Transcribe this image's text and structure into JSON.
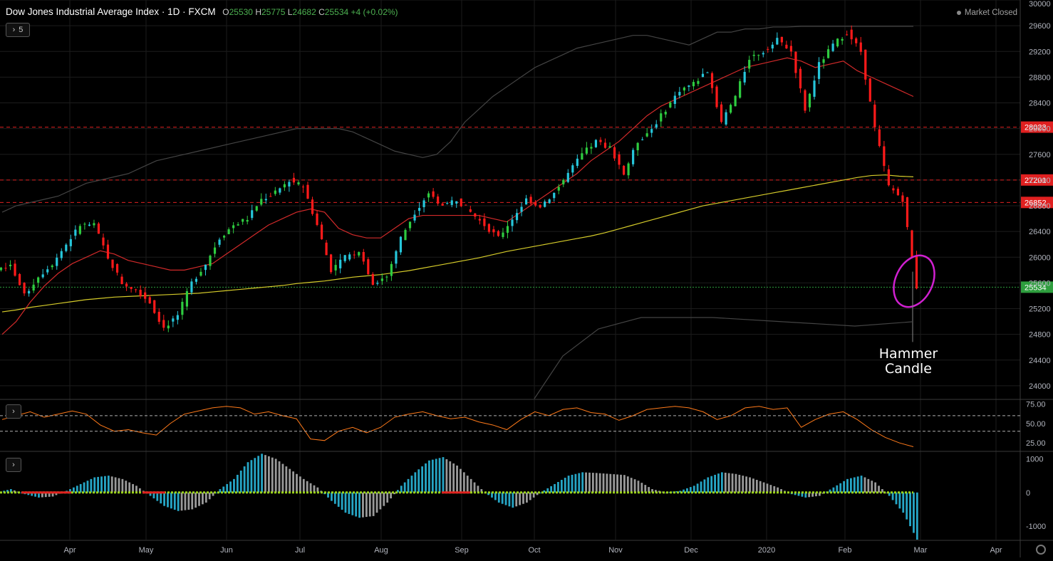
{
  "header": {
    "title": "Dow Jones Industrial Average Index · 1D · FXCM",
    "open_label": "O",
    "open": "25530",
    "high_label": "H",
    "high": "25775",
    "low_label": "L",
    "low": "24682",
    "close_label": "C",
    "close": "25534",
    "change": "+4 (+0.02%)"
  },
  "indicator_toggle": {
    "count": "5"
  },
  "market_status": "Market Closed",
  "annotation": {
    "line1": "Hammer",
    "line2": "Candle"
  },
  "price_axis_labels": [
    "30000",
    "29600",
    "29200",
    "28800",
    "28400",
    "28000",
    "27600",
    "27200",
    "26800",
    "26400",
    "26000",
    "25600",
    "25200",
    "24800",
    "24400",
    "24000"
  ],
  "rsi_axis_labels": [
    "75.00",
    "50.00",
    "25.00"
  ],
  "macd_axis_labels": [
    "1000",
    "0",
    "-1000"
  ],
  "time_axis_labels": [
    "Apr",
    "May",
    "Jun",
    "Jul",
    "Aug",
    "Sep",
    "Oct",
    "Nov",
    "Dec",
    "2020",
    "Feb",
    "Mar",
    "Apr"
  ],
  "chart_data": [
    {
      "type": "line",
      "title": "Dow Jones Industrial Average Index · 1D · FXCM",
      "ylim": [
        23800,
        30000
      ],
      "series": [
        {
          "values": [
            25900,
            25400,
            25700,
            25900,
            26200,
            26500,
            26500,
            26000,
            25600,
            25500,
            25300,
            24900,
            25100,
            25600,
            25900,
            26300,
            26500,
            26600,
            26900,
            27000,
            27200,
            27100,
            26500,
            25800,
            26000,
            26100,
            25600,
            25700,
            26300,
            26700,
            27000,
            26800,
            26900,
            26700,
            26500,
            26300,
            26600,
            26900,
            26800,
            27000,
            27300,
            27600,
            27800,
            27700,
            27300,
            27800,
            28000,
            28300,
            28600,
            28700,
            28900,
            28100,
            28500,
            29100,
            29200,
            29400,
            29200,
            28300,
            29000,
            29300,
            29500,
            29200,
            28000,
            27100,
            26900,
            25534
          ]
        },
        {
          "values": [
            25150,
            25180,
            25220,
            25250,
            25280,
            25310,
            25340,
            25360,
            25380,
            25390,
            25400,
            25410,
            25420,
            25430,
            25440,
            25460,
            25480,
            25500,
            25520,
            25540,
            25560,
            25590,
            25610,
            25630,
            25660,
            25690,
            25710,
            25730,
            25760,
            25790,
            25830,
            25870,
            25910,
            25950,
            25990,
            26040,
            26090,
            26130,
            26170,
            26210,
            26250,
            26290,
            26330,
            26380,
            26440,
            26500,
            26560,
            26620,
            26680,
            26740,
            26800,
            26840,
            26880,
            26920,
            26960,
            27000,
            27040,
            27080,
            27120,
            27160,
            27200,
            27240,
            27270,
            27280,
            27260,
            27250
          ]
        },
        {
          "values": [
            24800,
            25000,
            25300,
            25550,
            25750,
            25900,
            26000,
            26100,
            26050,
            25950,
            25900,
            25850,
            25800,
            25800,
            25850,
            25900,
            26050,
            26200,
            26350,
            26500,
            26600,
            26700,
            26750,
            26700,
            26450,
            26350,
            26300,
            26300,
            26450,
            26600,
            26650,
            26650,
            26650,
            26650,
            26650,
            26600,
            26550,
            26700,
            26850,
            27000,
            27150,
            27300,
            27500,
            27650,
            27800,
            28000,
            28200,
            28350,
            28450,
            28550,
            28650,
            28750,
            28850,
            28950,
            29000,
            29050,
            29100,
            29050,
            28950,
            29000,
            29050,
            28900,
            28800,
            28700,
            28600,
            28500
          ]
        },
        {
          "values": [
            26700,
            26800,
            26850,
            26900,
            26950,
            27050,
            27150,
            27200,
            27250,
            27300,
            27400,
            27500,
            27550,
            27600,
            27650,
            27700,
            27750,
            27800,
            27850,
            27900,
            27950,
            28000,
            28000,
            28000,
            28000,
            27950,
            27850,
            27750,
            27650,
            27600,
            27550,
            27600,
            27800,
            28100,
            28300,
            28500,
            28650,
            28800,
            28950,
            29050,
            29150,
            29250,
            29300,
            29350,
            29400,
            29450,
            29450,
            29400,
            29350,
            29300,
            29400,
            29500,
            29500,
            29550,
            29550,
            29580,
            29580,
            29590,
            29590,
            29590,
            29590,
            29590,
            29590,
            29590,
            29590,
            29590
          ]
        }
      ]
    },
    {
      "type": "line",
      "ylim": [
        15,
        80
      ],
      "series": [
        {
          "values": [
            55,
            60,
            65,
            58,
            62,
            66,
            62,
            48,
            40,
            42,
            38,
            35,
            50,
            62,
            66,
            70,
            72,
            70,
            62,
            65,
            60,
            56,
            30,
            28,
            40,
            45,
            38,
            45,
            58,
            62,
            65,
            60,
            56,
            58,
            52,
            48,
            42,
            55,
            65,
            60,
            68,
            70,
            64,
            62,
            54,
            60,
            68,
            70,
            72,
            70,
            65,
            55,
            60,
            70,
            72,
            68,
            70,
            45,
            55,
            62,
            65,
            55,
            42,
            32,
            25,
            20
          ]
        },
        {
          "values": [
            60,
            60
          ],
          "name": ""
        },
        {
          "values": [
            40,
            40
          ]
        }
      ]
    },
    {
      "type": "bar",
      "ylim": [
        -1400,
        1200
      ],
      "values": [
        100,
        -50,
        -150,
        -120,
        50,
        250,
        450,
        500,
        400,
        200,
        -100,
        -400,
        -550,
        -500,
        -300,
        100,
        400,
        900,
        1150,
        1000,
        700,
        400,
        150,
        -250,
        -600,
        -750,
        -700,
        -300,
        200,
        600,
        950,
        1050,
        800,
        400,
        0,
        -300,
        -450,
        -300,
        0,
        250,
        500,
        600,
        580,
        550,
        520,
        350,
        100,
        0,
        50,
        200,
        450,
        600,
        550,
        450,
        300,
        150,
        -50,
        -150,
        -100,
        150,
        400,
        500,
        300,
        -100,
        -600,
        -1400
      ]
    }
  ]
}
